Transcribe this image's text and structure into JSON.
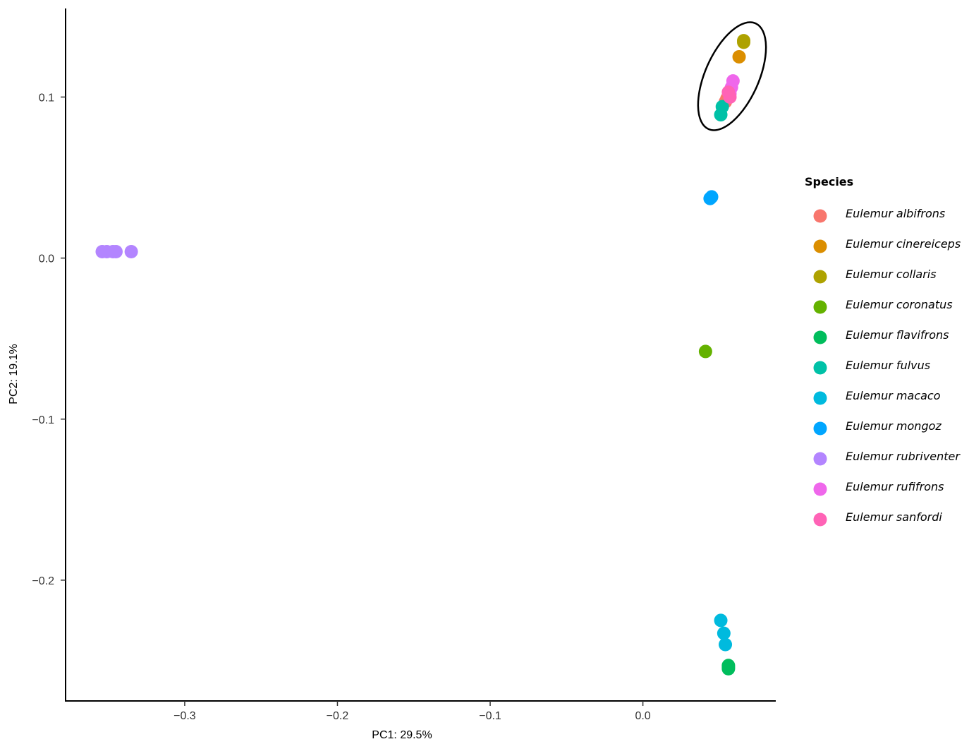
{
  "chart_data": {
    "type": "scatter",
    "xlabel": "PC1: 29.5%",
    "ylabel": "PC2: 19.1%",
    "xlim": [
      -0.378,
      0.087
    ],
    "ylim": [
      -0.275,
      0.155
    ],
    "x_ticks": [
      -0.3,
      -0.2,
      -0.1,
      0.0
    ],
    "x_tick_labels": [
      "−0.3",
      "−0.2",
      "−0.1",
      "0.0"
    ],
    "y_ticks": [
      0.1,
      0.0,
      -0.1,
      -0.2
    ],
    "y_tick_labels": [
      "0.1",
      "0.0",
      "−0.1",
      "−0.2"
    ],
    "grid": false,
    "legend_position": "right",
    "legend_title": "Species",
    "annotation": {
      "type": "ellipse",
      "center": [
        0.06,
        0.0995
      ],
      "description": "circles cluster at top-right"
    },
    "series": [
      {
        "name": "Eulemur albifrons",
        "color": "#F8766D",
        "points": [
          [
            0.055,
            0.099
          ],
          [
            0.056,
            0.101
          ],
          [
            0.054,
            0.097
          ]
        ]
      },
      {
        "name": "Eulemur cinereiceps",
        "color": "#DB8E00",
        "points": [
          [
            0.063,
            0.125
          ]
        ]
      },
      {
        "name": "Eulemur collaris",
        "color": "#AEA200",
        "points": [
          [
            0.066,
            0.134
          ],
          [
            0.066,
            0.135
          ]
        ]
      },
      {
        "name": "Eulemur coronatus",
        "color": "#64B200",
        "points": [
          [
            0.041,
            -0.058
          ]
        ]
      },
      {
        "name": "Eulemur flavifrons",
        "color": "#00BD5C",
        "points": [
          [
            0.056,
            -0.253
          ],
          [
            0.056,
            -0.255
          ],
          [
            0.056,
            -0.254
          ]
        ]
      },
      {
        "name": "Eulemur fulvus",
        "color": "#00C1A7",
        "points": [
          [
            0.052,
            0.094
          ],
          [
            0.051,
            0.089
          ]
        ]
      },
      {
        "name": "Eulemur macaco",
        "color": "#00BADE",
        "points": [
          [
            0.051,
            -0.225
          ],
          [
            0.053,
            -0.233
          ],
          [
            0.054,
            -0.24
          ]
        ]
      },
      {
        "name": "Eulemur mongoz",
        "color": "#00A6FF",
        "points": [
          [
            0.045,
            0.038
          ],
          [
            0.044,
            0.037
          ]
        ]
      },
      {
        "name": "Eulemur rubriventer",
        "color": "#B385FF",
        "points": [
          [
            -0.354,
            0.004
          ],
          [
            -0.351,
            0.004
          ],
          [
            -0.347,
            0.004
          ],
          [
            -0.345,
            0.004
          ],
          [
            -0.335,
            0.004
          ]
        ]
      },
      {
        "name": "Eulemur rufifrons",
        "color": "#EF67EB",
        "points": [
          [
            0.059,
            0.11
          ],
          [
            0.058,
            0.106
          ],
          [
            0.057,
            0.104
          ],
          [
            0.057,
            0.102
          ]
        ]
      },
      {
        "name": "Eulemur sanfordi",
        "color": "#FF63B6",
        "points": [
          [
            0.056,
            0.103
          ],
          [
            0.057,
            0.1
          ]
        ]
      }
    ]
  }
}
